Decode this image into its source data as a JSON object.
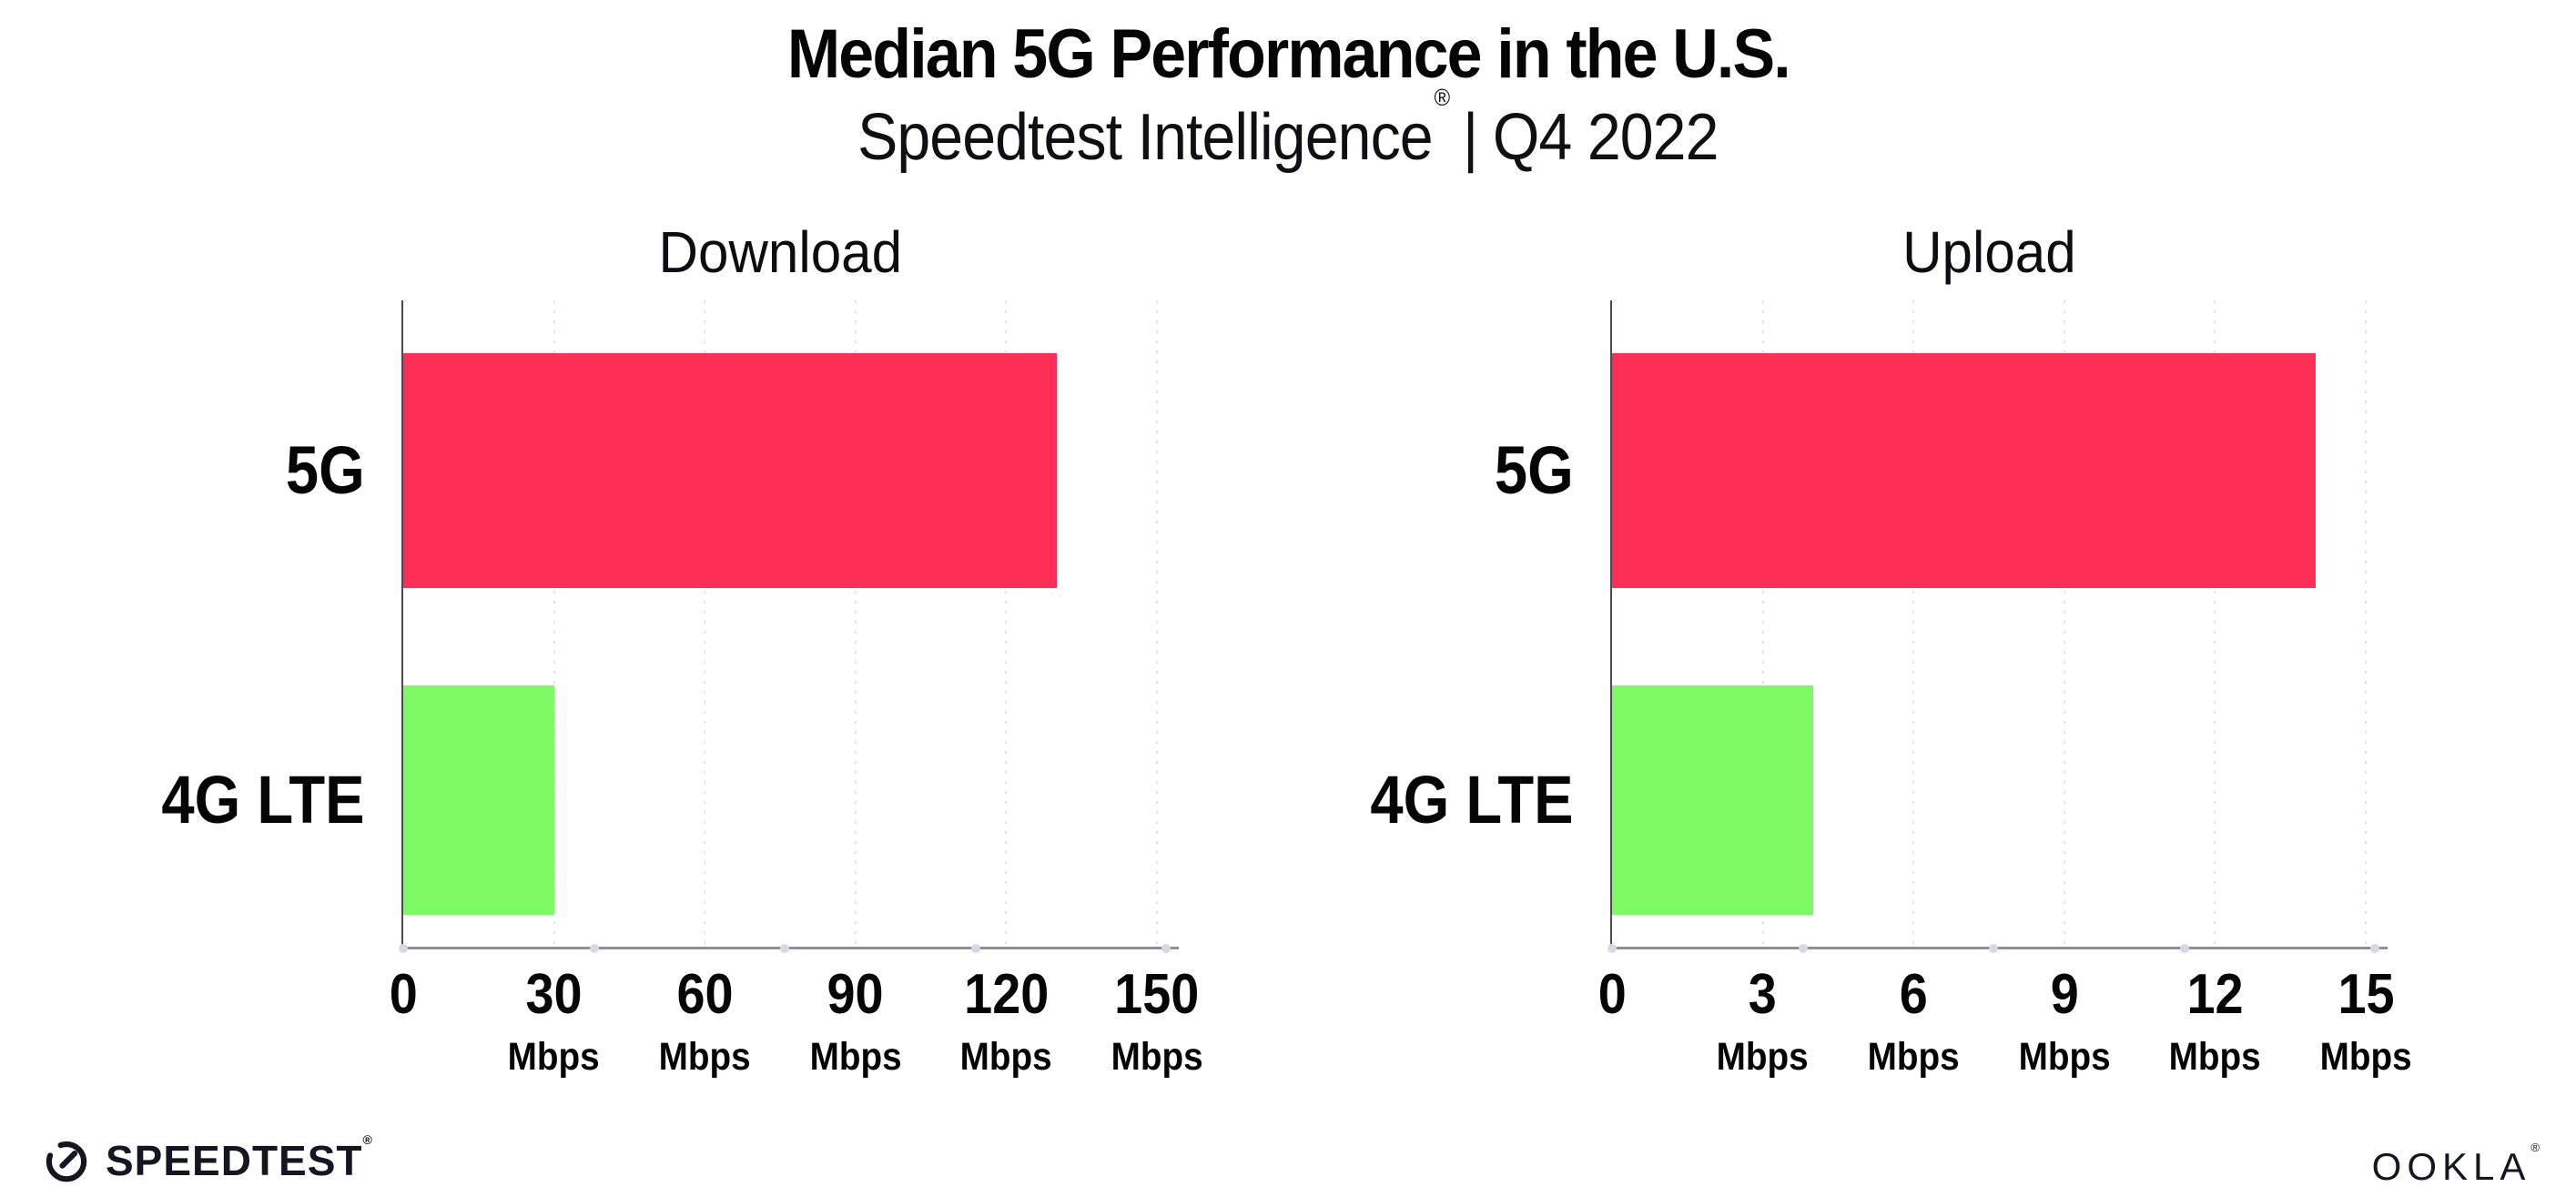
{
  "header": {
    "title": "Median 5G Performance in the U.S.",
    "subtitle_product": "Speedtest Intelligence",
    "registered_mark": "®",
    "subtitle_separator": "|",
    "subtitle_period": "Q4 2022"
  },
  "footer": {
    "speedtest_label": "SPEEDTEST",
    "ookla_label": "OOKLA",
    "registered_mark": "®",
    "speedtest_icon": "speedtest-gauge-icon"
  },
  "colors": {
    "bar_5g": "#FF2E57",
    "bar_4g_lte": "#7DF964",
    "axis_line": "#4A4A52",
    "baseline": "#8F8F99",
    "gridline": "#E3E3EF",
    "baseline_dot": "#D8D8E4",
    "text": "#050505"
  },
  "chart_data": [
    {
      "type": "bar",
      "orientation": "horizontal",
      "title": "Download",
      "unit": "Mbps",
      "categories": [
        "5G",
        "4G LTE"
      ],
      "values": [
        130,
        30
      ],
      "xlim": [
        0,
        150
      ],
      "xticks": [
        0,
        30,
        60,
        90,
        120,
        150
      ],
      "grid": "dotted-vertical",
      "legend": "none",
      "series_colors": [
        "#FF2E57",
        "#7DF964"
      ]
    },
    {
      "type": "bar",
      "orientation": "horizontal",
      "title": "Upload",
      "unit": "Mbps",
      "categories": [
        "5G",
        "4G LTE"
      ],
      "values": [
        14,
        4
      ],
      "xlim": [
        0,
        15
      ],
      "xticks": [
        0,
        3,
        6,
        9,
        12,
        15
      ],
      "grid": "dotted-vertical",
      "legend": "none",
      "series_colors": [
        "#FF2E57",
        "#7DF964"
      ]
    }
  ]
}
